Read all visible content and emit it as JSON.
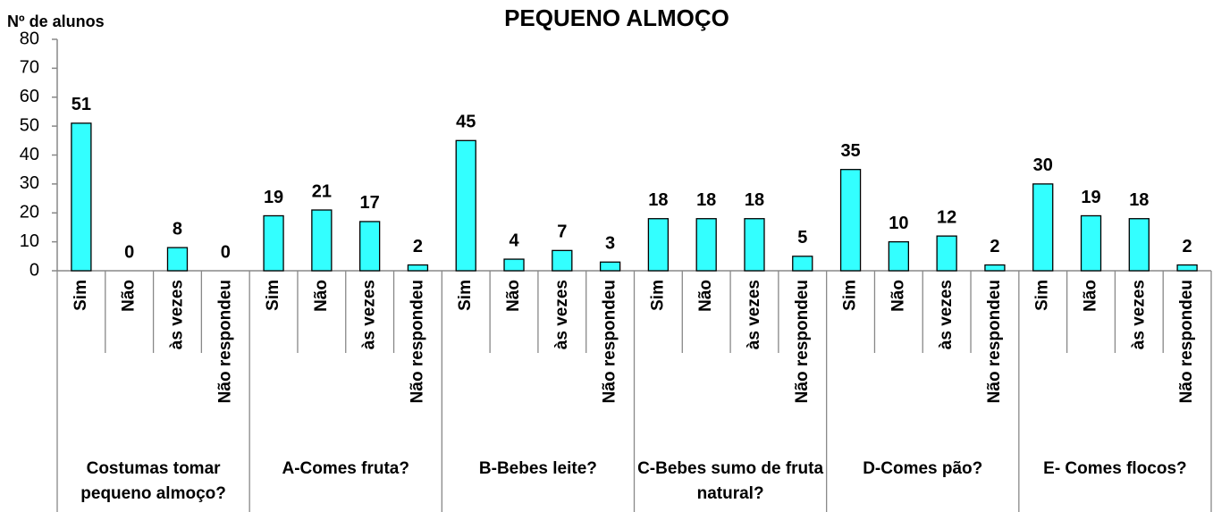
{
  "chart_data": {
    "type": "bar",
    "title": "PEQUENO ALMOÇO",
    "ylabel": "Nº de alunos",
    "color": "#33ffff",
    "ylim": [
      0,
      80
    ],
    "yticks": [
      0,
      10,
      20,
      30,
      40,
      50,
      60,
      70,
      80
    ],
    "groups": [
      {
        "name": "Costumas tomar pequeno almoço?",
        "categories": [
          "Sim",
          "Não",
          "às vezes",
          "Não respondeu"
        ],
        "values": [
          51,
          0,
          8,
          0
        ]
      },
      {
        "name": "A-Comes fruta?",
        "categories": [
          "Sim",
          "Não",
          "às vezes",
          "Não respondeu"
        ],
        "values": [
          19,
          21,
          17,
          2
        ]
      },
      {
        "name": "B-Bebes leite?",
        "categories": [
          "Sim",
          "Não",
          "às vezes",
          "Não respondeu"
        ],
        "values": [
          45,
          4,
          7,
          3
        ]
      },
      {
        "name": "C-Bebes sumo de fruta natural?",
        "categories": [
          "Sim",
          "Não",
          "às vezes",
          "Não respondeu"
        ],
        "values": [
          18,
          18,
          18,
          5
        ]
      },
      {
        "name": "D-Comes pão?",
        "categories": [
          "Sim",
          "Não",
          "às vezes",
          "Não respondeu"
        ],
        "values": [
          35,
          10,
          12,
          2
        ]
      },
      {
        "name": "E- Comes flocos?",
        "categories": [
          "Sim",
          "Não",
          "às vezes",
          "Não respondeu"
        ],
        "values": [
          30,
          19,
          18,
          2
        ]
      }
    ]
  }
}
